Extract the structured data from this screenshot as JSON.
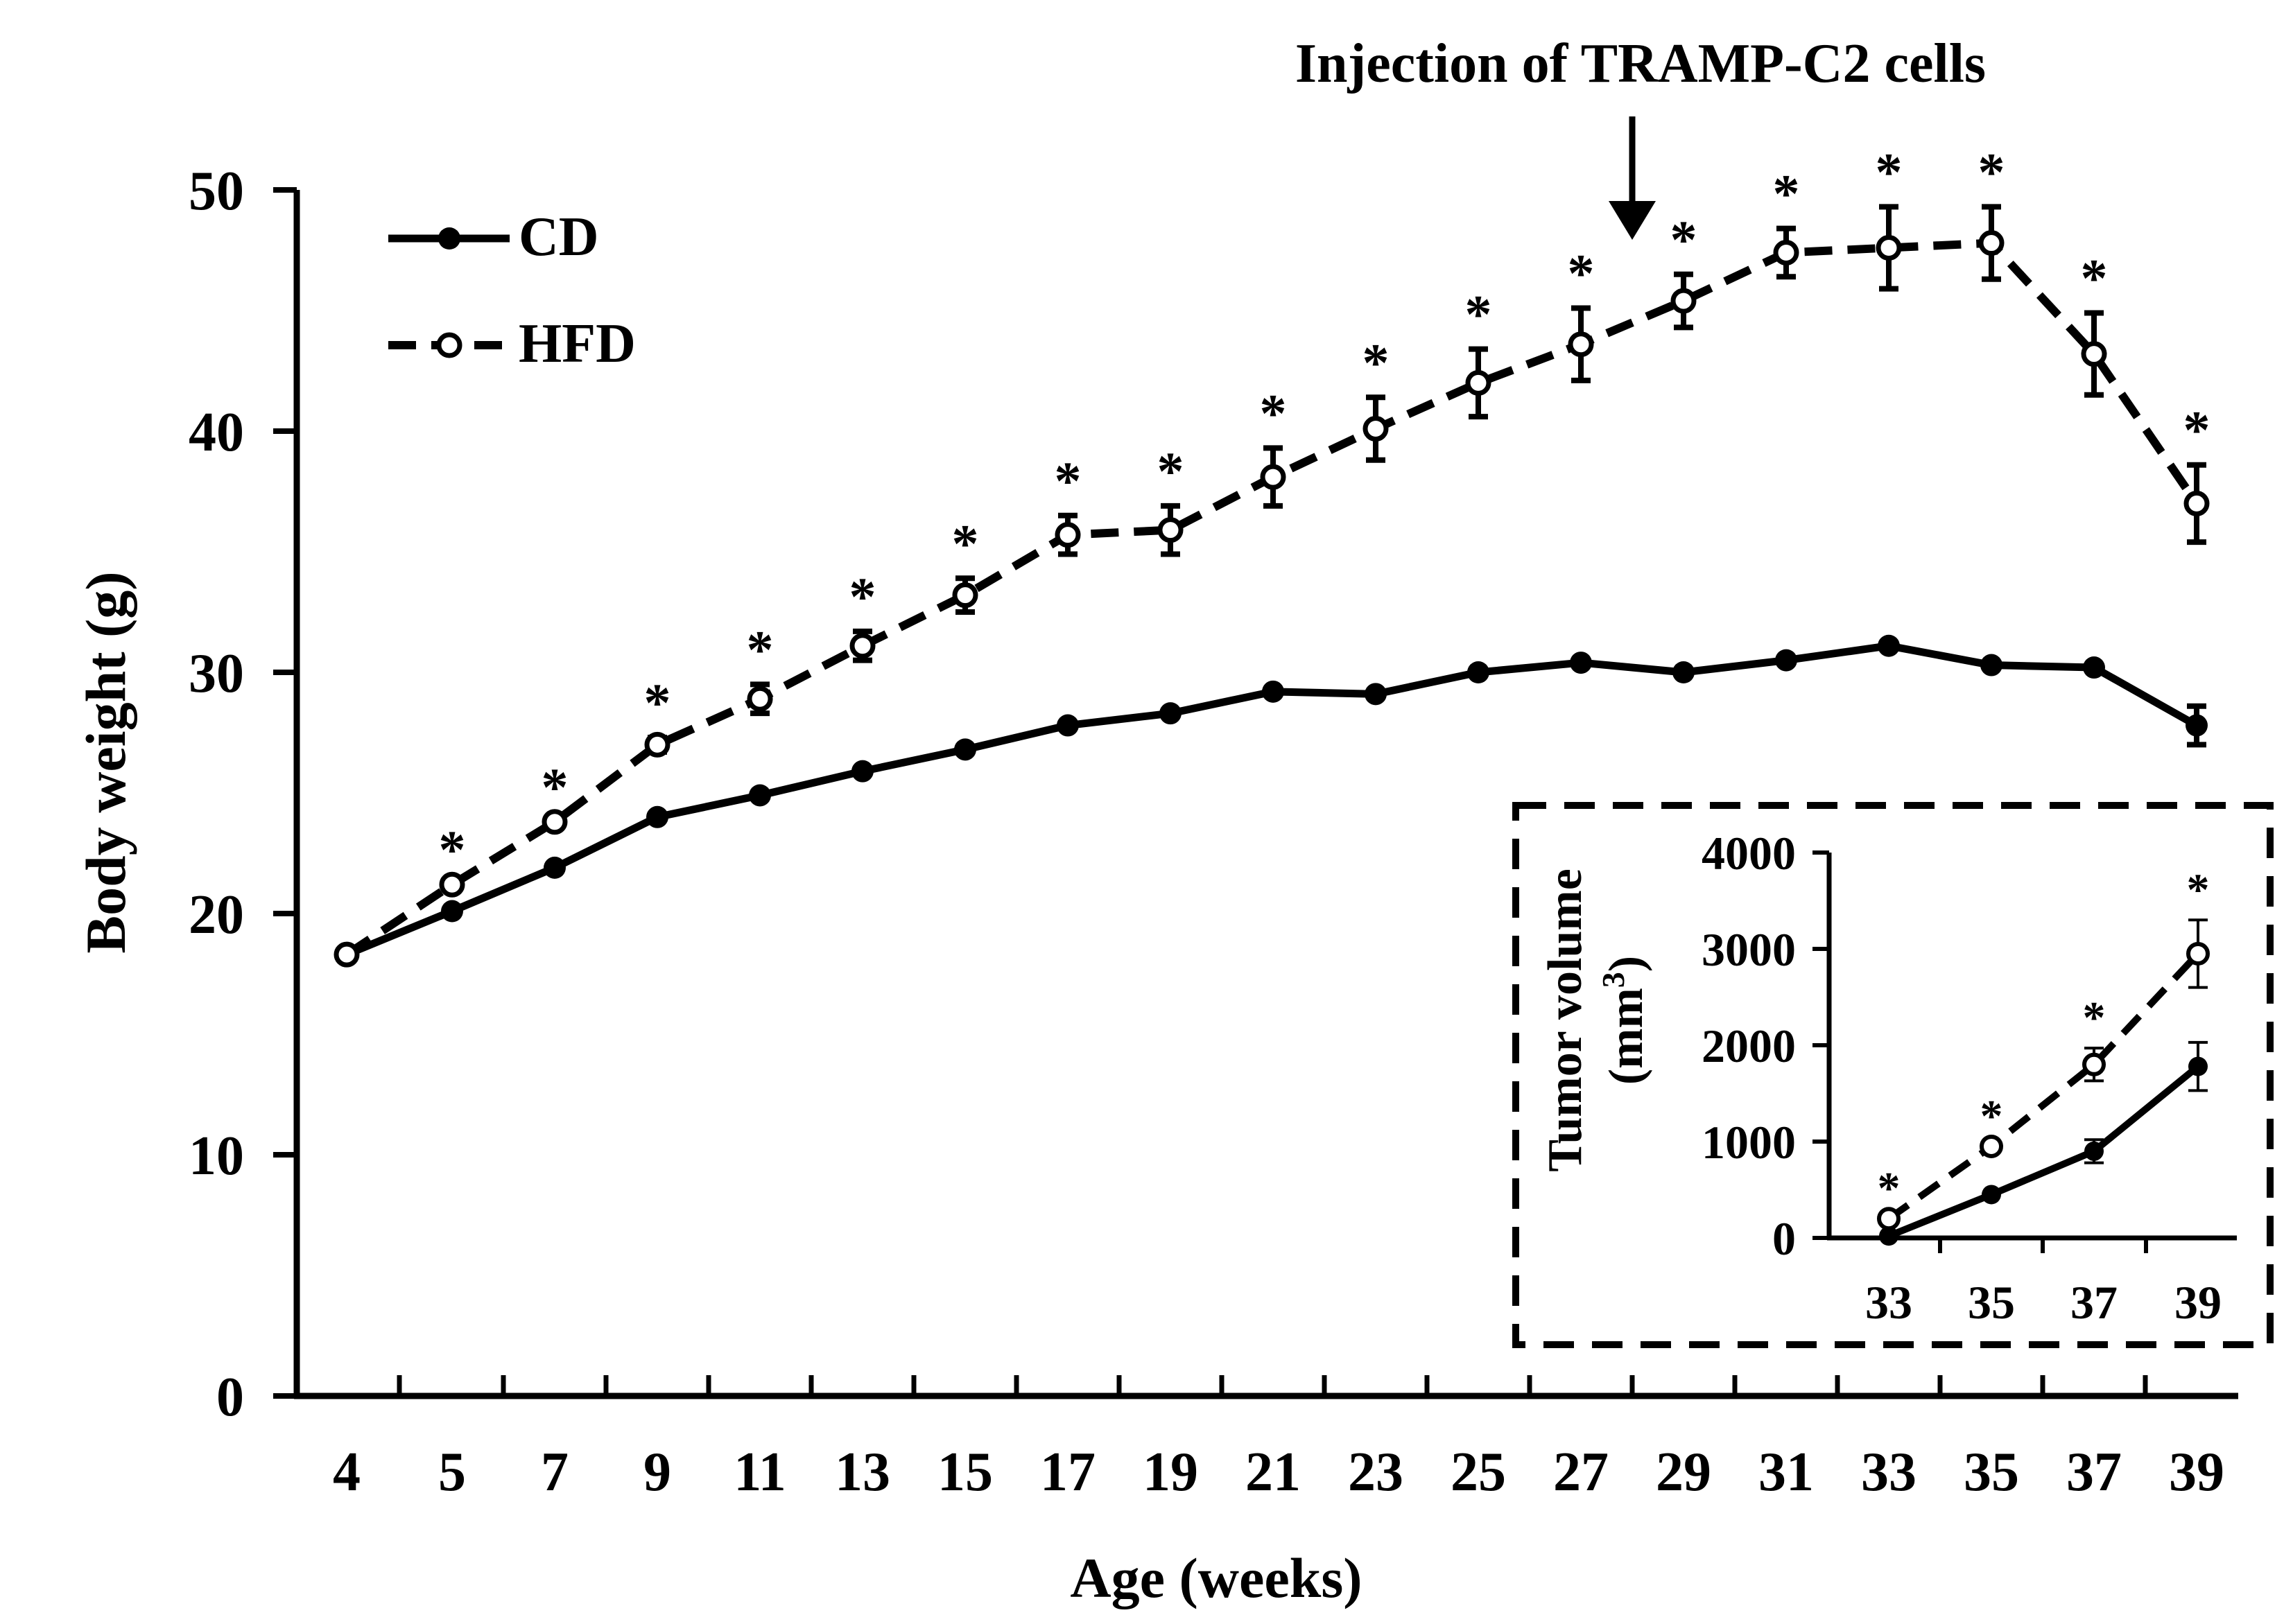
{
  "chart_data": [
    {
      "type": "line",
      "title": "",
      "xlabel": "Age (weeks)",
      "ylabel": "Body weight (g)",
      "categories": [
        "4",
        "5",
        "7",
        "9",
        "11",
        "13",
        "15",
        "17",
        "19",
        "21",
        "23",
        "25",
        "27",
        "29",
        "31",
        "33",
        "35",
        "37",
        "39"
      ],
      "ylim": [
        0,
        50
      ],
      "yticks": [
        "0",
        "10",
        "20",
        "30",
        "40",
        "50"
      ],
      "series": [
        {
          "name": "CD",
          "style": "solid-filled",
          "values": [
            18.3,
            20.1,
            21.9,
            24.0,
            24.9,
            25.9,
            26.8,
            27.8,
            28.3,
            29.2,
            29.1,
            30.0,
            30.4,
            30.0,
            30.5,
            31.1,
            30.3,
            30.2,
            27.8
          ],
          "errors": [
            0,
            0,
            0,
            0,
            0,
            0,
            0,
            0,
            0,
            0,
            0,
            0,
            0,
            0,
            0,
            0,
            0,
            0,
            0.8
          ]
        },
        {
          "name": "HFD",
          "style": "dashed-open",
          "values": [
            18.3,
            21.2,
            23.8,
            27.0,
            28.9,
            31.1,
            33.2,
            35.7,
            35.9,
            38.1,
            40.1,
            42.0,
            43.6,
            45.4,
            47.4,
            47.6,
            47.8,
            43.2,
            37.0
          ],
          "errors": [
            0,
            0,
            0,
            0.3,
            0.6,
            0.6,
            0.7,
            0.8,
            1.0,
            1.2,
            1.3,
            1.4,
            1.5,
            1.1,
            1.0,
            1.7,
            1.5,
            1.7,
            1.6
          ]
        }
      ],
      "significance_marks": [
        "",
        "*",
        "*",
        "*",
        "*",
        "*",
        "*",
        "*",
        "*",
        "*",
        "*",
        "*",
        "*",
        "*",
        "*",
        "*",
        "*",
        "*",
        "*"
      ],
      "annotation": "Injection of TRAMP-C2 cells",
      "annotation_x": "28",
      "legend": "top-left"
    },
    {
      "type": "line",
      "title": "",
      "ylabel_line1": "Tumor volume",
      "ylabel_line2_base": "(mm",
      "ylabel_line2_sup": "3",
      "ylabel_line2_end": ")",
      "categories": [
        "33",
        "35",
        "37",
        "39"
      ],
      "ylim": [
        0,
        4000
      ],
      "yticks": [
        "0",
        "1000",
        "2000",
        "3000",
        "4000"
      ],
      "series": [
        {
          "name": "CD",
          "style": "solid-filled",
          "values": [
            20,
            450,
            900,
            1780
          ],
          "errors": [
            0,
            0,
            120,
            250
          ]
        },
        {
          "name": "HFD",
          "style": "dashed-open",
          "values": [
            200,
            950,
            1800,
            2950
          ],
          "errors": [
            0,
            0,
            170,
            350
          ]
        }
      ],
      "significance_marks": [
        "*",
        "*",
        "*",
        "*"
      ],
      "placement": "inset, bottom-right"
    }
  ]
}
